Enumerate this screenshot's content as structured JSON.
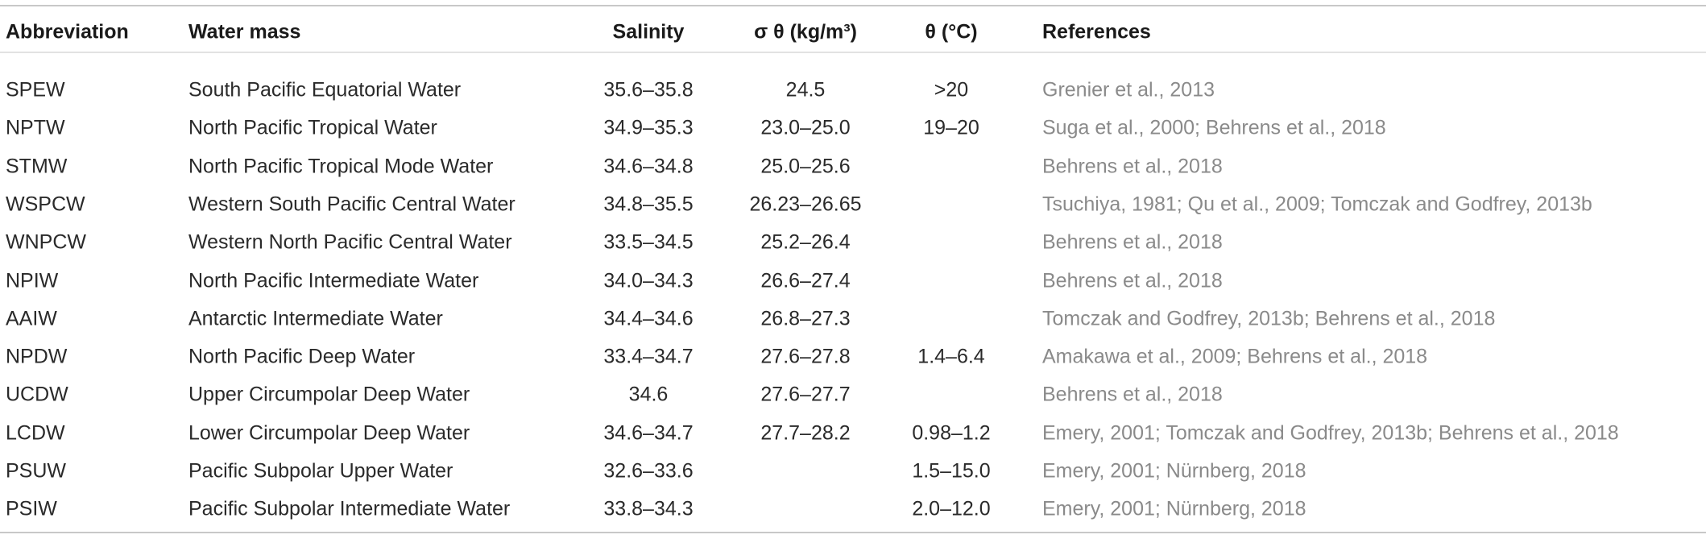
{
  "table": {
    "header": [
      "Abbreviation",
      "Water mass",
      "Salinity",
      "σ θ (kg/m³)",
      "θ (°C)",
      "References"
    ],
    "rows": [
      [
        "SPEW",
        "South Pacific Equatorial Water",
        "35.6–35.8",
        "24.5",
        ">20",
        "Grenier et al., 2013"
      ],
      [
        "NPTW",
        "North Pacific Tropical Water",
        "34.9–35.3",
        "23.0–25.0",
        "19–20",
        "Suga et al., 2000; Behrens et al., 2018"
      ],
      [
        "STMW",
        "North Pacific Tropical Mode Water",
        "34.6–34.8",
        "25.0–25.6",
        null,
        "Behrens et al., 2018"
      ],
      [
        "WSPCW",
        "Western South Pacific Central Water",
        "34.8–35.5",
        "26.23–26.65",
        null,
        "Tsuchiya, 1981; Qu et al., 2009; Tomczak and Godfrey, 2013b"
      ],
      [
        "WNPCW",
        "Western North Pacific Central Water",
        "33.5–34.5",
        "25.2–26.4",
        null,
        "Behrens et al., 2018"
      ],
      [
        "NPIW",
        "North Pacific Intermediate Water",
        "34.0–34.3",
        "26.6–27.4",
        null,
        "Behrens et al., 2018"
      ],
      [
        "AAIW",
        "Antarctic Intermediate Water",
        "34.4–34.6",
        "26.8–27.3",
        null,
        "Tomczak and Godfrey, 2013b; Behrens et al., 2018"
      ],
      [
        "NPDW",
        "North Pacific Deep Water",
        "33.4–34.7",
        "27.6–27.8",
        "1.4–6.4",
        "Amakawa et al., 2009; Behrens et al., 2018"
      ],
      [
        "UCDW",
        "Upper Circumpolar Deep Water",
        "34.6",
        "27.6–27.7",
        null,
        "Behrens et al., 2018"
      ],
      [
        "LCDW",
        "Lower Circumpolar Deep Water",
        "34.6–34.7",
        "27.7–28.2",
        "0.98–1.2",
        "Emery, 2001; Tomczak and Godfrey, 2013b; Behrens et al., 2018"
      ],
      [
        "PSUW",
        "Pacific Subpolar Upper Water",
        "32.6–33.6",
        null,
        "1.5–15.0",
        "Emery, 2001; Nürnberg, 2018"
      ],
      [
        "PSIW",
        "Pacific Subpolar Intermediate Water",
        "33.8–34.3",
        null,
        "2.0–12.0",
        "Emery, 2001; Nürnberg, 2018"
      ]
    ]
  }
}
